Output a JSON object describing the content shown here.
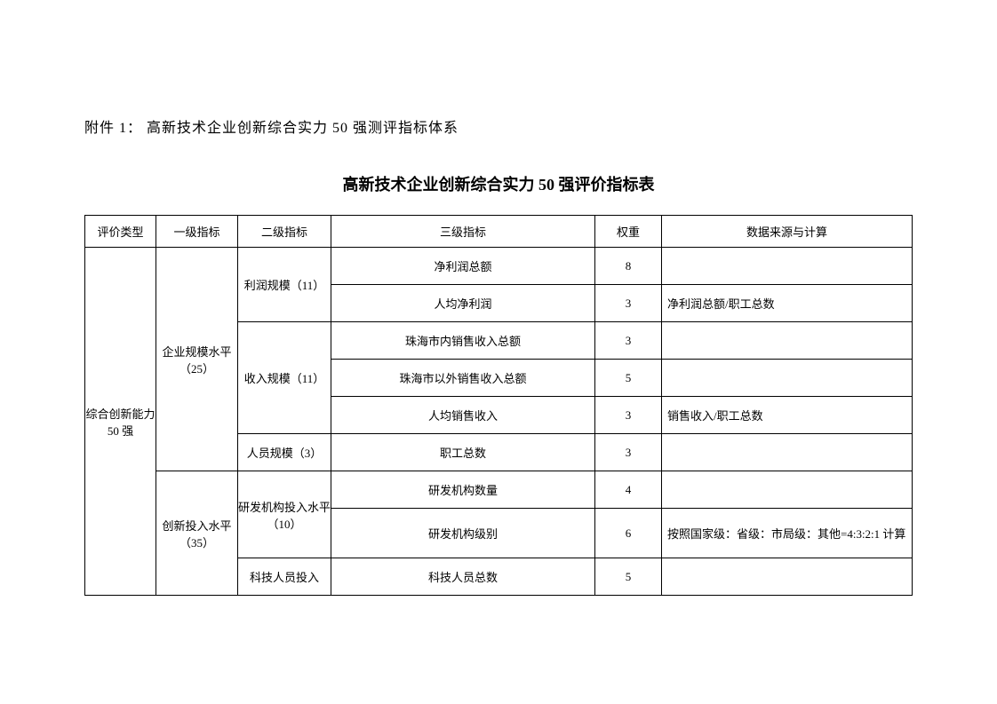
{
  "attachment_label": "附件 1：  高新技术企业创新综合实力 50 强测评指标体系",
  "title": "高新技术企业创新综合实力 50 强评价指标表",
  "columns": {
    "eval_type": "评价类型",
    "level1": "一级指标",
    "level2": "二级指标",
    "level3": "三级指标",
    "weight": "权重",
    "source": "数据来源与计算"
  },
  "eval_type": "综合创新能力 50 强",
  "groups": {
    "scale": {
      "name": "企业规模水平（25）",
      "profit": {
        "name": "利润规模（11）",
        "r1": {
          "l3": "净利润总额",
          "w": "8",
          "src": ""
        },
        "r2": {
          "l3": "人均净利润",
          "w": "3",
          "src": "净利润总额/职工总数"
        }
      },
      "revenue": {
        "name": "收入规模（11）",
        "r1": {
          "l3": "珠海市内销售收入总额",
          "w": "3",
          "src": ""
        },
        "r2": {
          "l3": "珠海市以外销售收入总额",
          "w": "5",
          "src": ""
        },
        "r3": {
          "l3": "人均销售收入",
          "w": "3",
          "src": "销售收入/职工总数"
        }
      },
      "staff": {
        "name": "人员规模（3）",
        "r1": {
          "l3": "职工总数",
          "w": "3",
          "src": ""
        }
      }
    },
    "innov": {
      "name": "创新投入水平（35）",
      "rd_org": {
        "name": "研发机构投入水平（10）",
        "r1": {
          "l3": "研发机构数量",
          "w": "4",
          "src": ""
        },
        "r2": {
          "l3": "研发机构级别",
          "w": "6",
          "src": "按照国家级：省级：市局级：其他=4:3:2:1 计算"
        }
      },
      "tech_staff": {
        "name": "科技人员投入",
        "r1": {
          "l3": "科技人员总数",
          "w": "5",
          "src": ""
        }
      }
    }
  }
}
